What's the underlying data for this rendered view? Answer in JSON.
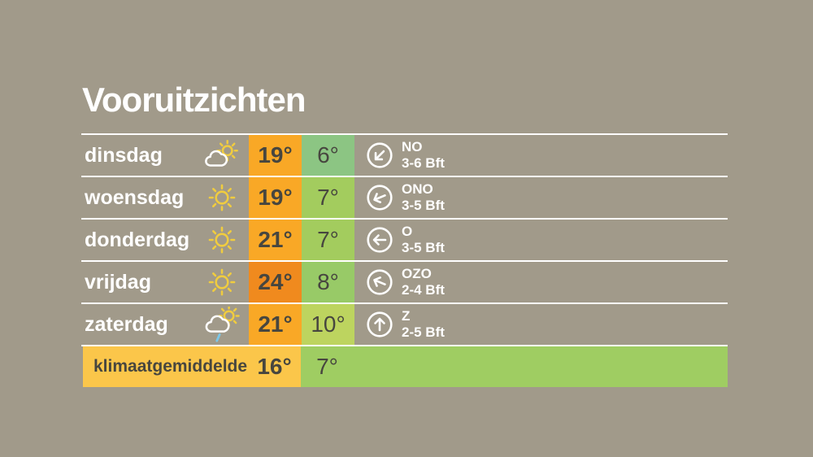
{
  "page": {
    "title": "Vooruitzichten"
  },
  "colors": {
    "background": "#A19A8A",
    "separator": "#FFFFFF",
    "day_text": "#FFFFFF",
    "temp_text": "#47463F",
    "wind_text": "#FFFFFF",
    "sun": "#F0CC3F",
    "cloud": "#FFFFFF",
    "rain": "#7CC7E8"
  },
  "forecast": {
    "rows": [
      {
        "day": "dinsdag",
        "icon": "sun-behind-cloud",
        "max": "19°",
        "max_bg": "#F9A826",
        "min": "6°",
        "min_bg": "#8CC583",
        "wind_dir": "NO",
        "wind_force": "3-6 Bft",
        "arrow_deg": 225
      },
      {
        "day": "woensdag",
        "icon": "sun",
        "max": "19°",
        "max_bg": "#F9A826",
        "min": "7°",
        "min_bg": "#A3CC5E",
        "wind_dir": "ONO",
        "wind_force": "3-5 Bft",
        "arrow_deg": 247.5
      },
      {
        "day": "donderdag",
        "icon": "sun",
        "max": "21°",
        "max_bg": "#F9A826",
        "min": "7°",
        "min_bg": "#A3CC5E",
        "wind_dir": "O",
        "wind_force": "3-5 Bft",
        "arrow_deg": 270
      },
      {
        "day": "vrijdag",
        "icon": "sun",
        "max": "24°",
        "max_bg": "#F08A1E",
        "min": "8°",
        "min_bg": "#98CA67",
        "wind_dir": "OZO",
        "wind_force": "2-4 Bft",
        "arrow_deg": 292.5
      },
      {
        "day": "zaterdag",
        "icon": "sun-cloud-rain",
        "max": "21°",
        "max_bg": "#F9A826",
        "min": "10°",
        "min_bg": "#BDD45F",
        "wind_dir": "Z",
        "wind_force": "2-5 Bft",
        "arrow_deg": 360
      }
    ],
    "climate": {
      "label": "klimaatgemiddelde",
      "max": "16°",
      "max_bg": "#FBC64A",
      "min": "7°",
      "min_bg": "#9FCD62"
    }
  },
  "chart_data": {
    "type": "table",
    "title": "Vooruitzichten",
    "columns": [
      "dag",
      "weericoon",
      "max_temp",
      "min_temp",
      "windrichting",
      "windkracht"
    ],
    "rows": [
      [
        "dinsdag",
        "sun-behind-cloud",
        19,
        6,
        "NO",
        "3-6 Bft"
      ],
      [
        "woensdag",
        "sun",
        19,
        7,
        "ONO",
        "3-5 Bft"
      ],
      [
        "donderdag",
        "sun",
        21,
        7,
        "O",
        "3-5 Bft"
      ],
      [
        "vrijdag",
        "sun",
        24,
        8,
        "OZO",
        "2-4 Bft"
      ],
      [
        "zaterdag",
        "sun-cloud-rain",
        21,
        10,
        "Z",
        "2-5 Bft"
      ],
      [
        "klimaatgemiddelde",
        "",
        16,
        7,
        "",
        ""
      ]
    ]
  }
}
